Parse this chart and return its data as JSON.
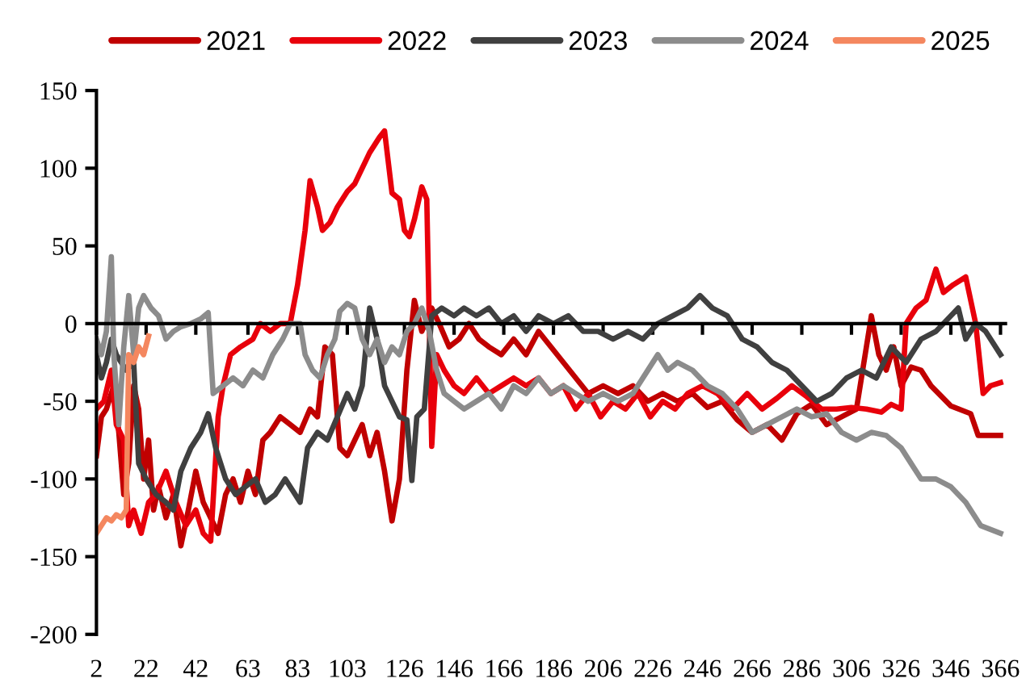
{
  "chart_data": {
    "type": "line",
    "legend": "top",
    "marker": "none",
    "line_style": "solid",
    "xlim": [
      2,
      368
    ],
    "xticks": [
      2,
      22,
      42,
      63,
      83,
      103,
      126,
      146,
      166,
      186,
      206,
      226,
      246,
      266,
      286,
      306,
      326,
      346,
      366
    ],
    "ylim": [
      -200,
      150
    ],
    "yticks": [
      -200,
      -150,
      -100,
      -50,
      0,
      50,
      100,
      150
    ],
    "series": [
      {
        "name": "2021",
        "color": "#c00000",
        "x": [
          2,
          4,
          6,
          9,
          11,
          13,
          15,
          17,
          19,
          21,
          23,
          25,
          27,
          30,
          33,
          36,
          39,
          42,
          45,
          48,
          51,
          54,
          57,
          60,
          63,
          66,
          69,
          72,
          76,
          80,
          84,
          88,
          91,
          94,
          97,
          100,
          103,
          106,
          109,
          112,
          115,
          118,
          121,
          124,
          127,
          130,
          133,
          137,
          140,
          144,
          148,
          152,
          156,
          160,
          165,
          170,
          175,
          180,
          185,
          190,
          195,
          200,
          206,
          212,
          218,
          224,
          230,
          236,
          242,
          248,
          254,
          260,
          266,
          272,
          278,
          284,
          290,
          296,
          302,
          308,
          314,
          317,
          320,
          323,
          326,
          330,
          334,
          338,
          346,
          354,
          357,
          366
        ],
        "values": [
          -85,
          -60,
          -55,
          -40,
          -70,
          -110,
          -90,
          -40,
          -55,
          -100,
          -75,
          -120,
          -105,
          -125,
          -110,
          -143,
          -120,
          -95,
          -115,
          -125,
          -135,
          -110,
          -100,
          -115,
          -95,
          -110,
          -75,
          -70,
          -60,
          -65,
          -70,
          -55,
          -60,
          -15,
          -20,
          -80,
          -85,
          -75,
          -65,
          -85,
          -70,
          -95,
          -127,
          -100,
          -30,
          15,
          -5,
          10,
          0,
          -15,
          -10,
          0,
          -10,
          -15,
          -20,
          -10,
          -20,
          -5,
          -15,
          -25,
          -35,
          -45,
          -40,
          -45,
          -40,
          -50,
          -45,
          -50,
          -45,
          -54,
          -50,
          -62,
          -70,
          -65,
          -75,
          -58,
          -52,
          -65,
          -60,
          -55,
          5,
          -20,
          -30,
          -15,
          -40,
          -28,
          -30,
          -40,
          -53,
          -58,
          -72,
          -72
        ]
      },
      {
        "name": "2022",
        "color": "#e8000b",
        "x": [
          2,
          5,
          8,
          10,
          13,
          15,
          17,
          20,
          23,
          26,
          30,
          34,
          38,
          42,
          45,
          48,
          51,
          53,
          56,
          60,
          65,
          68,
          72,
          76,
          80,
          83,
          86,
          88,
          91,
          93,
          96,
          99,
          103,
          106,
          109,
          112,
          116,
          118,
          121,
          124,
          126,
          128,
          130,
          133,
          135,
          137,
          139,
          142,
          146,
          150,
          155,
          160,
          165,
          170,
          175,
          180,
          185,
          190,
          195,
          200,
          205,
          210,
          215,
          220,
          225,
          230,
          235,
          240,
          246,
          252,
          258,
          264,
          270,
          276,
          282,
          288,
          294,
          300,
          306,
          312,
          318,
          322,
          326,
          328,
          332,
          336,
          340,
          343,
          347,
          352,
          356,
          359,
          362,
          366
        ],
        "values": [
          -55,
          -50,
          -30,
          -65,
          -75,
          -130,
          -120,
          -135,
          -115,
          -110,
          -95,
          -115,
          -130,
          -120,
          -135,
          -140,
          -60,
          -40,
          -20,
          -15,
          -10,
          0,
          -5,
          0,
          0,
          25,
          60,
          92,
          75,
          60,
          65,
          75,
          85,
          90,
          100,
          110,
          120,
          124,
          84,
          80,
          60,
          56,
          67,
          88,
          80,
          -79,
          -20,
          -30,
          -40,
          -45,
          -35,
          -45,
          -40,
          -35,
          -40,
          -35,
          -45,
          -40,
          -55,
          -45,
          -60,
          -50,
          -55,
          -45,
          -60,
          -50,
          -55,
          -45,
          -40,
          -45,
          -55,
          -45,
          -55,
          -48,
          -40,
          -47,
          -55,
          -55,
          -54,
          -55,
          -57,
          -52,
          -55,
          0,
          10,
          15,
          35,
          20,
          25,
          30,
          0,
          -45,
          -40,
          -38
        ]
      },
      {
        "name": "2023",
        "color": "#404040",
        "x": [
          2,
          4,
          6,
          8,
          10,
          14,
          17,
          19,
          22,
          26,
          30,
          33,
          36,
          40,
          44,
          47,
          50,
          54,
          58,
          62,
          66,
          70,
          74,
          78,
          82,
          84,
          87,
          91,
          95,
          99,
          103,
          106,
          109,
          112,
          115,
          118,
          121,
          124,
          127,
          129,
          131,
          134,
          137,
          141,
          146,
          150,
          155,
          160,
          165,
          170,
          175,
          180,
          186,
          192,
          198,
          204,
          210,
          216,
          222,
          228,
          234,
          240,
          245,
          250,
          256,
          262,
          268,
          274,
          280,
          286,
          292,
          298,
          304,
          310,
          316,
          322,
          328,
          334,
          340,
          346,
          349,
          352,
          356,
          360,
          366
        ],
        "values": [
          -20,
          -35,
          -25,
          -10,
          -20,
          -30,
          -25,
          -90,
          -100,
          -110,
          -115,
          -120,
          -95,
          -80,
          -70,
          -58,
          -80,
          -100,
          -110,
          -105,
          -100,
          -115,
          -110,
          -100,
          -110,
          -115,
          -80,
          -70,
          -75,
          -60,
          -45,
          -55,
          -40,
          10,
          -10,
          -40,
          -50,
          -60,
          -62,
          -101,
          -60,
          -55,
          5,
          10,
          5,
          10,
          5,
          10,
          0,
          5,
          -5,
          5,
          0,
          5,
          -5,
          -5,
          -10,
          -5,
          -10,
          0,
          5,
          10,
          18,
          10,
          5,
          -10,
          -15,
          -25,
          -30,
          -40,
          -50,
          -45,
          -35,
          -30,
          -35,
          -15,
          -25,
          -10,
          -5,
          5,
          10,
          -10,
          0,
          -5,
          -20
        ]
      },
      {
        "name": "2024",
        "color": "#8c8c8c",
        "x": [
          2,
          4,
          6,
          8,
          9,
          11,
          13,
          15,
          17,
          19,
          21,
          24,
          27,
          30,
          33,
          36,
          40,
          44,
          47,
          49,
          53,
          57,
          61,
          65,
          69,
          73,
          77,
          80,
          84,
          86,
          89,
          92,
          95,
          98,
          100,
          103,
          106,
          109,
          112,
          115,
          118,
          121,
          124,
          127,
          130,
          133,
          136,
          139,
          142,
          146,
          150,
          155,
          160,
          165,
          170,
          175,
          180,
          185,
          190,
          195,
          200,
          206,
          212,
          218,
          224,
          228,
          232,
          236,
          242,
          248,
          254,
          260,
          266,
          272,
          278,
          284,
          290,
          296,
          302,
          308,
          314,
          320,
          326,
          330,
          334,
          340,
          346,
          352,
          358,
          366
        ],
        "values": [
          -10,
          -20,
          -5,
          43,
          -20,
          -65,
          -15,
          18,
          -20,
          10,
          18,
          10,
          5,
          -10,
          -5,
          -2,
          0,
          3,
          7,
          -45,
          -40,
          -35,
          -40,
          -30,
          -35,
          -20,
          -10,
          0,
          0,
          -20,
          -30,
          -35,
          -20,
          -10,
          8,
          13,
          10,
          -10,
          -20,
          -10,
          -25,
          -15,
          -20,
          -5,
          0,
          10,
          -5,
          -30,
          -45,
          -50,
          -55,
          -50,
          -45,
          -55,
          -40,
          -45,
          -35,
          -45,
          -40,
          -45,
          -50,
          -45,
          -50,
          -45,
          -30,
          -20,
          -30,
          -25,
          -30,
          -40,
          -45,
          -55,
          -70,
          -65,
          -60,
          -55,
          -60,
          -58,
          -70,
          -75,
          -70,
          -72,
          -80,
          -90,
          -100,
          -100,
          -105,
          -115,
          -130,
          -135
        ]
      },
      {
        "name": "2025",
        "color": "#f4875f",
        "x": [
          2,
          4,
          6,
          8,
          10,
          12,
          14,
          15,
          17,
          19,
          21,
          23
        ],
        "values": [
          -135,
          -130,
          -125,
          -127,
          -123,
          -125,
          -120,
          -20,
          -25,
          -15,
          -20,
          -8
        ]
      }
    ]
  }
}
